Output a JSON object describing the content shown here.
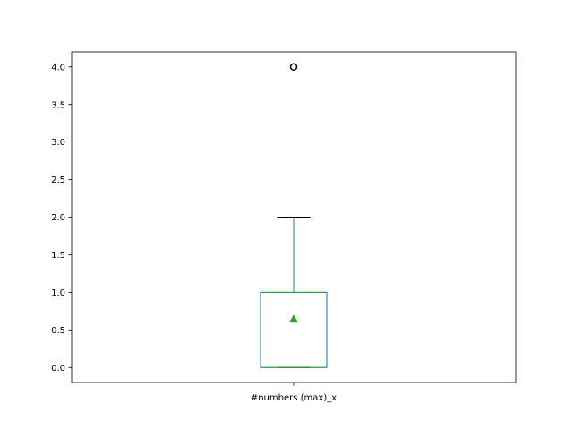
{
  "chart_data": {
    "type": "box",
    "title": "",
    "xlabel": "",
    "ylabel": "",
    "categories": [
      "#numbers (max)_x"
    ],
    "ylim": [
      -0.2,
      4.2
    ],
    "yticks": [
      "0.0",
      "0.5",
      "1.0",
      "1.5",
      "2.0",
      "2.5",
      "3.0",
      "3.5",
      "4.0"
    ],
    "grid": false,
    "series": [
      {
        "stats": {
          "whisker_low": 0.0,
          "q1": 0.0,
          "median": 0.0,
          "q3": 1.0,
          "whisker_high": 2.0,
          "mean": 0.65,
          "outliers": [
            4.0
          ]
        }
      }
    ],
    "colors": {
      "box": "#1f77b4",
      "median": "#2ca02c",
      "mean_marker": "#2ca02c",
      "whisker_caps": "#000000",
      "outlier": "#000000",
      "axes": "#000000"
    }
  }
}
